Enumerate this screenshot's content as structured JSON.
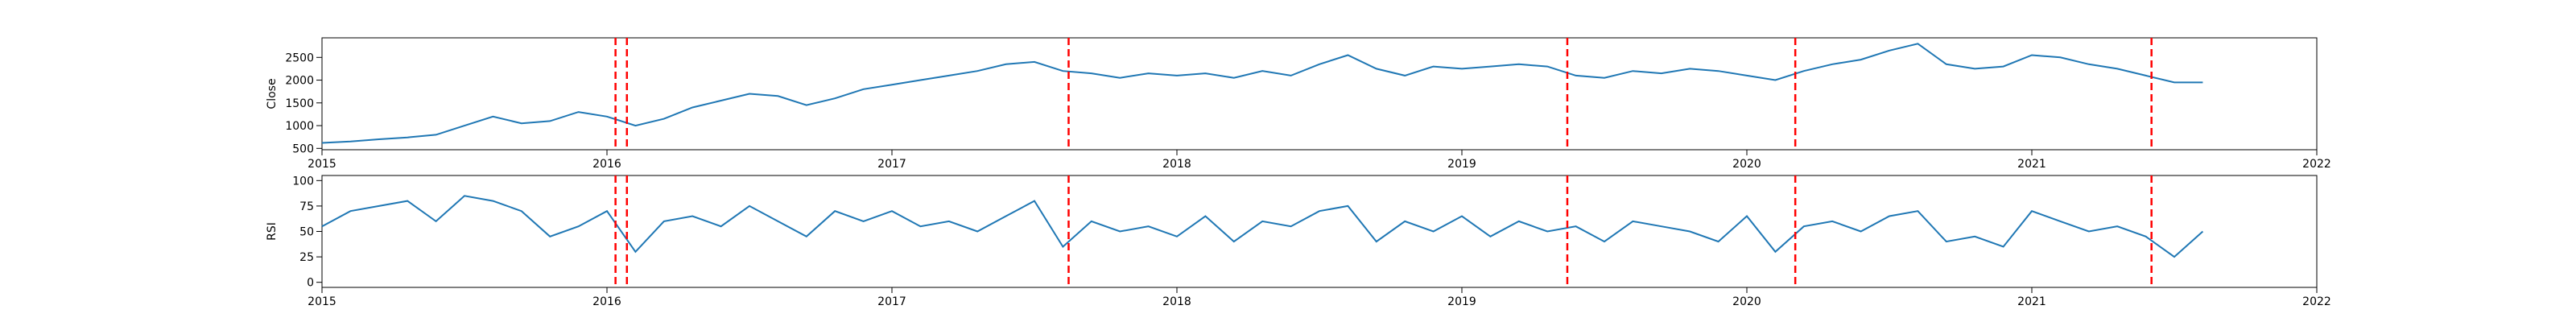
{
  "chart_data": [
    {
      "type": "line",
      "ylabel": "Close",
      "color": "#1f77b4",
      "vline_color": "#ff0000",
      "x": [
        2015.0,
        2015.1,
        2015.2,
        2015.3,
        2015.4,
        2015.5,
        2015.6,
        2015.7,
        2015.8,
        2015.9,
        2016.0,
        2016.1,
        2016.2,
        2016.3,
        2016.4,
        2016.5,
        2016.6,
        2016.7,
        2016.8,
        2016.9,
        2017.0,
        2017.1,
        2017.2,
        2017.3,
        2017.4,
        2017.5,
        2017.6,
        2017.7,
        2017.8,
        2017.9,
        2018.0,
        2018.1,
        2018.2,
        2018.3,
        2018.4,
        2018.5,
        2018.6,
        2018.7,
        2018.8,
        2018.9,
        2019.0,
        2019.1,
        2019.2,
        2019.3,
        2019.4,
        2019.5,
        2019.6,
        2019.7,
        2019.8,
        2019.9,
        2020.0,
        2020.1,
        2020.2,
        2020.3,
        2020.4,
        2020.5,
        2020.6,
        2020.7,
        2020.8,
        2020.9,
        2021.0,
        2021.1,
        2021.2,
        2021.3,
        2021.4,
        2021.5,
        2021.6
      ],
      "values": [
        620,
        650,
        700,
        740,
        800,
        1000,
        1200,
        1050,
        1100,
        1300,
        1200,
        1000,
        1150,
        1400,
        1550,
        1700,
        1650,
        1450,
        1600,
        1800,
        1900,
        2000,
        2100,
        2200,
        2350,
        2400,
        2200,
        2150,
        2050,
        2150,
        2100,
        2150,
        2050,
        2200,
        2100,
        2350,
        2550,
        2250,
        2100,
        2300,
        2250,
        2300,
        2350,
        2300,
        2100,
        2050,
        2200,
        2150,
        2250,
        2200,
        2100,
        2000,
        2200,
        2350,
        2450,
        2650,
        2800,
        2350,
        2250,
        2300,
        2550,
        2500,
        2350,
        2250,
        2100,
        1950,
        1950
      ],
      "vlines": [
        2016.03,
        2016.07,
        2017.62,
        2019.37,
        2020.17,
        2021.42
      ],
      "xlim": [
        2015,
        2022
      ],
      "xticks": [
        2015,
        2016,
        2017,
        2018,
        2019,
        2020,
        2021,
        2022
      ],
      "ylim": [
        470,
        2930
      ],
      "yticks": [
        500,
        1000,
        1500,
        2000,
        2500
      ]
    },
    {
      "type": "line",
      "ylabel": "RSI",
      "color": "#1f77b4",
      "vline_color": "#ff0000",
      "x": [
        2015.0,
        2015.1,
        2015.2,
        2015.3,
        2015.4,
        2015.5,
        2015.6,
        2015.7,
        2015.8,
        2015.9,
        2016.0,
        2016.1,
        2016.2,
        2016.3,
        2016.4,
        2016.5,
        2016.6,
        2016.7,
        2016.8,
        2016.9,
        2017.0,
        2017.1,
        2017.2,
        2017.3,
        2017.4,
        2017.5,
        2017.6,
        2017.7,
        2017.8,
        2017.9,
        2018.0,
        2018.1,
        2018.2,
        2018.3,
        2018.4,
        2018.5,
        2018.6,
        2018.7,
        2018.8,
        2018.9,
        2019.0,
        2019.1,
        2019.2,
        2019.3,
        2019.4,
        2019.5,
        2019.6,
        2019.7,
        2019.8,
        2019.9,
        2020.0,
        2020.1,
        2020.2,
        2020.3,
        2020.4,
        2020.5,
        2020.6,
        2020.7,
        2020.8,
        2020.9,
        2021.0,
        2021.1,
        2021.2,
        2021.3,
        2021.4,
        2021.5,
        2021.6
      ],
      "values": [
        55,
        70,
        75,
        80,
        60,
        85,
        80,
        70,
        45,
        55,
        70,
        30,
        60,
        65,
        55,
        75,
        60,
        45,
        70,
        60,
        70,
        55,
        60,
        50,
        65,
        80,
        35,
        60,
        50,
        55,
        45,
        65,
        40,
        60,
        55,
        70,
        75,
        40,
        60,
        50,
        65,
        45,
        60,
        50,
        55,
        40,
        60,
        55,
        50,
        40,
        65,
        30,
        55,
        60,
        50,
        65,
        70,
        40,
        45,
        35,
        70,
        60,
        50,
        55,
        45,
        25,
        50
      ],
      "vlines": [
        2016.03,
        2016.07,
        2017.62,
        2019.37,
        2020.17,
        2021.42
      ],
      "xlim": [
        2015,
        2022
      ],
      "xticks": [
        2015,
        2016,
        2017,
        2018,
        2019,
        2020,
        2021,
        2022
      ],
      "ylim": [
        -5,
        105
      ],
      "yticks": [
        0,
        25,
        50,
        75,
        100
      ]
    }
  ]
}
